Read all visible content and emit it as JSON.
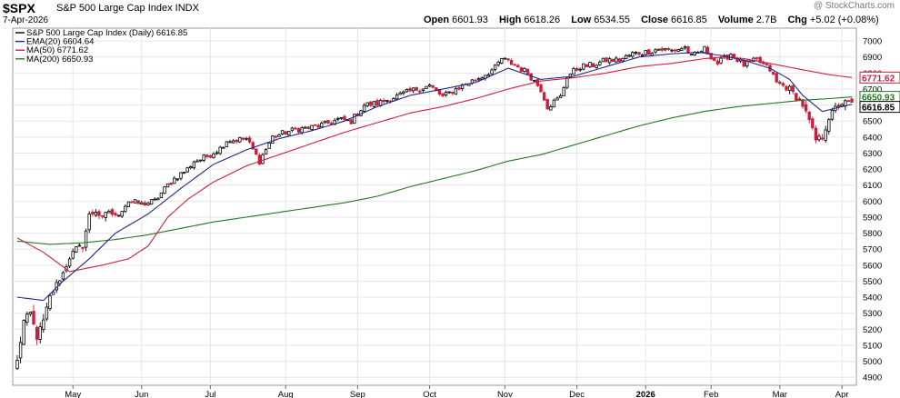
{
  "header": {
    "symbol": "$SPX",
    "name": "S&P 500 Large Cap Index INDX",
    "date": "7-Apr-2026",
    "watermark": "@ StockCharts.com",
    "stats": {
      "open_label": "Open",
      "open": "6601.93",
      "high_label": "High",
      "high": "6618.26",
      "low_label": "Low",
      "low": "6534.55",
      "close_label": "Close",
      "close": "6616.85",
      "volume_label": "Volume",
      "volume": "2.7B",
      "chg_label": "Chg",
      "chg": "+5.02 (+0.08%)"
    }
  },
  "legend": [
    {
      "text": "S&P 500 Large Cap Index (Daily) 6616.85",
      "color": "#000000"
    },
    {
      "text": "EMA(20) 6604.64",
      "color": "#1f2a8a"
    },
    {
      "text": "MA(50) 6771.62",
      "color": "#cc1f3d"
    },
    {
      "text": "MA(200) 6650.93",
      "color": "#1f7a1f"
    }
  ],
  "chart_data": {
    "type": "candlestick",
    "ylim": [
      4850,
      7080
    ],
    "y_ticks": [
      4900,
      5000,
      5100,
      5200,
      5300,
      5400,
      5500,
      5600,
      5700,
      5800,
      5900,
      6000,
      6100,
      6200,
      6300,
      6400,
      6500,
      6600,
      6700,
      6800,
      6900,
      7000
    ],
    "x_labels": [
      "May",
      "Jun",
      "Jul",
      "Aug",
      "Sep",
      "Oct",
      "Nov",
      "Dec",
      "2026",
      "Feb",
      "Mar",
      "Apr"
    ],
    "x_label_positions": [
      17,
      38,
      59,
      82,
      104,
      126,
      149,
      171,
      192,
      212,
      233,
      252
    ],
    "bold_x_labels": [
      "2026"
    ],
    "n_sessions": 256,
    "price_labels": [
      {
        "text": "6771.62",
        "value": 6771.62,
        "color": "#cc1f3d"
      },
      {
        "text": "6650.93",
        "value": 6650.93,
        "color": "#1f7a1f"
      },
      {
        "text": "6616.85",
        "value": 6616.85,
        "color": "#000000"
      }
    ],
    "close_anchors": [
      [
        0,
        5000
      ],
      [
        2,
        5250
      ],
      [
        4,
        5300
      ],
      [
        6,
        5150
      ],
      [
        8,
        5250
      ],
      [
        10,
        5400
      ],
      [
        12,
        5480
      ],
      [
        14,
        5550
      ],
      [
        16,
        5650
      ],
      [
        18,
        5700
      ],
      [
        20,
        5720
      ],
      [
        22,
        5910
      ],
      [
        24,
        5940
      ],
      [
        26,
        5890
      ],
      [
        28,
        5940
      ],
      [
        30,
        5900
      ],
      [
        34,
        6000
      ],
      [
        38,
        5980
      ],
      [
        42,
        6000
      ],
      [
        46,
        6100
      ],
      [
        48,
        6140
      ],
      [
        50,
        6170
      ],
      [
        52,
        6200
      ],
      [
        54,
        6250
      ],
      [
        56,
        6260
      ],
      [
        58,
        6280
      ],
      [
        62,
        6330
      ],
      [
        64,
        6380
      ],
      [
        66,
        6380
      ],
      [
        70,
        6390
      ],
      [
        74,
        6250
      ],
      [
        78,
        6400
      ],
      [
        82,
        6430
      ],
      [
        86,
        6450
      ],
      [
        90,
        6460
      ],
      [
        94,
        6480
      ],
      [
        98,
        6510
      ],
      [
        102,
        6500
      ],
      [
        106,
        6600
      ],
      [
        110,
        6610
      ],
      [
        114,
        6640
      ],
      [
        118,
        6670
      ],
      [
        122,
        6700
      ],
      [
        126,
        6720
      ],
      [
        130,
        6650
      ],
      [
        134,
        6700
      ],
      [
        138,
        6740
      ],
      [
        142,
        6780
      ],
      [
        146,
        6830
      ],
      [
        148,
        6890
      ],
      [
        152,
        6850
      ],
      [
        156,
        6800
      ],
      [
        160,
        6700
      ],
      [
        162,
        6590
      ],
      [
        166,
        6650
      ],
      [
        168,
        6780
      ],
      [
        172,
        6840
      ],
      [
        176,
        6850
      ],
      [
        180,
        6880
      ],
      [
        184,
        6880
      ],
      [
        188,
        6920
      ],
      [
        192,
        6930
      ],
      [
        196,
        6950
      ],
      [
        200,
        6940
      ],
      [
        204,
        6960
      ],
      [
        206,
        6900
      ],
      [
        210,
        6950
      ],
      [
        214,
        6860
      ],
      [
        218,
        6920
      ],
      [
        222,
        6850
      ],
      [
        226,
        6880
      ],
      [
        230,
        6820
      ],
      [
        232,
        6740
      ],
      [
        236,
        6700
      ],
      [
        240,
        6600
      ],
      [
        242,
        6500
      ],
      [
        244,
        6380
      ],
      [
        246,
        6400
      ],
      [
        248,
        6520
      ],
      [
        250,
        6580
      ],
      [
        252,
        6611
      ],
      [
        255,
        6616.85
      ]
    ],
    "ema20_anchors": [
      [
        0,
        5400
      ],
      [
        8,
        5380
      ],
      [
        14,
        5500
      ],
      [
        22,
        5640
      ],
      [
        30,
        5800
      ],
      [
        40,
        5920
      ],
      [
        50,
        6080
      ],
      [
        60,
        6230
      ],
      [
        70,
        6320
      ],
      [
        80,
        6390
      ],
      [
        90,
        6440
      ],
      [
        100,
        6500
      ],
      [
        110,
        6590
      ],
      [
        120,
        6660
      ],
      [
        130,
        6700
      ],
      [
        140,
        6740
      ],
      [
        150,
        6830
      ],
      [
        160,
        6760
      ],
      [
        170,
        6780
      ],
      [
        180,
        6840
      ],
      [
        190,
        6900
      ],
      [
        200,
        6920
      ],
      [
        208,
        6930
      ],
      [
        215,
        6910
      ],
      [
        222,
        6880
      ],
      [
        230,
        6830
      ],
      [
        236,
        6760
      ],
      [
        240,
        6660
      ],
      [
        246,
        6560
      ],
      [
        252,
        6590
      ],
      [
        255,
        6604.64
      ]
    ],
    "ma50_anchors": [
      [
        0,
        5770
      ],
      [
        8,
        5680
      ],
      [
        16,
        5560
      ],
      [
        26,
        5600
      ],
      [
        34,
        5640
      ],
      [
        40,
        5720
      ],
      [
        46,
        5900
      ],
      [
        52,
        6010
      ],
      [
        60,
        6120
      ],
      [
        70,
        6220
      ],
      [
        80,
        6290
      ],
      [
        90,
        6360
      ],
      [
        100,
        6430
      ],
      [
        110,
        6490
      ],
      [
        120,
        6550
      ],
      [
        130,
        6590
      ],
      [
        140,
        6640
      ],
      [
        150,
        6700
      ],
      [
        160,
        6750
      ],
      [
        170,
        6770
      ],
      [
        180,
        6800
      ],
      [
        190,
        6840
      ],
      [
        200,
        6860
      ],
      [
        210,
        6890
      ],
      [
        216,
        6900
      ],
      [
        222,
        6890
      ],
      [
        230,
        6860
      ],
      [
        240,
        6820
      ],
      [
        248,
        6790
      ],
      [
        255,
        6771.62
      ]
    ],
    "ma200_anchors": [
      [
        0,
        5750
      ],
      [
        10,
        5730
      ],
      [
        20,
        5740
      ],
      [
        30,
        5760
      ],
      [
        40,
        5790
      ],
      [
        50,
        5830
      ],
      [
        60,
        5870
      ],
      [
        70,
        5900
      ],
      [
        80,
        5930
      ],
      [
        90,
        5960
      ],
      [
        100,
        5990
      ],
      [
        110,
        6030
      ],
      [
        120,
        6090
      ],
      [
        130,
        6140
      ],
      [
        140,
        6190
      ],
      [
        150,
        6250
      ],
      [
        160,
        6290
      ],
      [
        170,
        6350
      ],
      [
        180,
        6410
      ],
      [
        190,
        6470
      ],
      [
        200,
        6520
      ],
      [
        210,
        6560
      ],
      [
        220,
        6590
      ],
      [
        230,
        6610
      ],
      [
        240,
        6630
      ],
      [
        248,
        6640
      ],
      [
        255,
        6650.93
      ]
    ],
    "colors": {
      "up": "#000000",
      "down": "#cc1f3d",
      "ema20": "#1f2a8a",
      "ma50": "#cc1f3d",
      "ma200": "#1f7a1f",
      "grid": "#e6e6e6"
    }
  }
}
